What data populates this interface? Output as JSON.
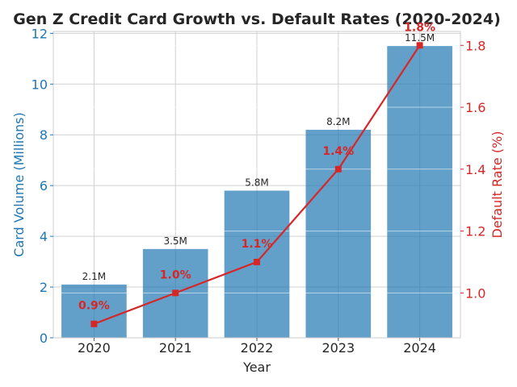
{
  "chart_data": {
    "type": "bar",
    "title": "Gen Z Credit Card Growth vs. Default Rates (2020-2024)",
    "xlabel": "Year",
    "ylabel": "Card Volume (Millions)",
    "y2label": "Default Rate (%)",
    "categories": [
      "2020",
      "2021",
      "2022",
      "2023",
      "2024"
    ],
    "series": [
      {
        "name": "Card Volume",
        "type": "bar",
        "axis": "left",
        "color": "#1f77b4",
        "values": [
          2.1,
          3.5,
          5.8,
          8.2,
          11.5
        ],
        "labels": [
          "2.1M",
          "3.5M",
          "5.8M",
          "8.2M",
          "11.5M"
        ]
      },
      {
        "name": "Default Rate",
        "type": "line",
        "axis": "right",
        "color": "#d62728",
        "values": [
          0.9,
          1.0,
          1.1,
          1.4,
          1.8
        ],
        "labels": [
          "0.9%",
          "1.0%",
          "1.1%",
          "1.4%",
          "1.8%"
        ]
      }
    ],
    "ylim": [
      0,
      12.075
    ],
    "yticks": [
      0,
      2,
      4,
      6,
      8,
      10,
      12
    ],
    "y2lim": [
      0.855,
      1.845
    ],
    "y2ticks": [
      "1.0",
      "1.2",
      "1.4",
      "1.6",
      "1.8"
    ],
    "grid": true
  }
}
